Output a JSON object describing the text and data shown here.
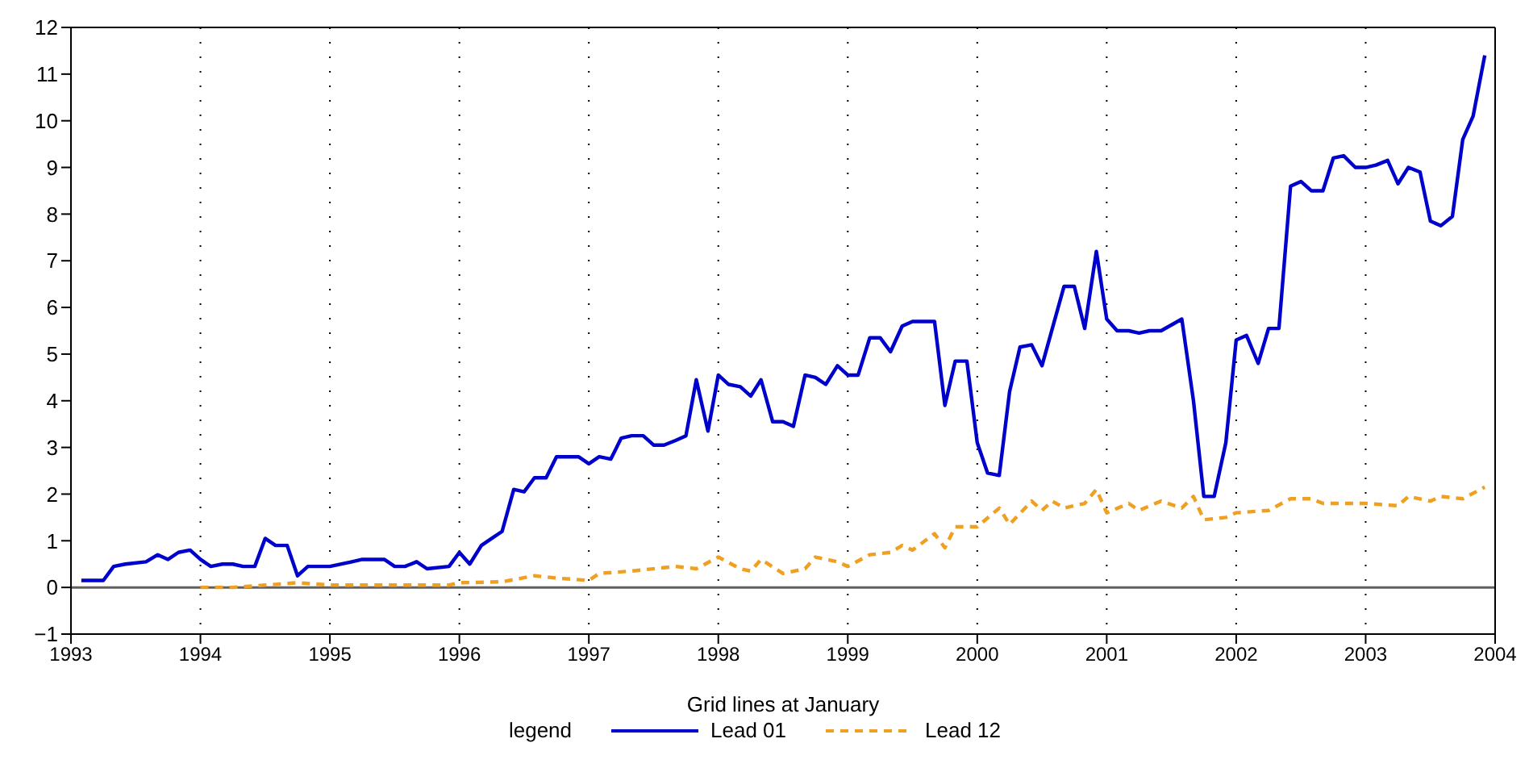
{
  "chart_data": {
    "type": "line",
    "xlabel": "Grid lines at January",
    "legend_title": "legend",
    "legend": "bottom",
    "grid": "x",
    "marker": "none",
    "xlim": [
      1993,
      2004
    ],
    "xticks": [
      1993,
      1994,
      1995,
      1996,
      1997,
      1998,
      1999,
      2000,
      2001,
      2002,
      2003,
      2004
    ],
    "ylim": [
      -1,
      12
    ],
    "yticks": [
      -1,
      0,
      1,
      2,
      3,
      4,
      5,
      6,
      7,
      8,
      9,
      10,
      11,
      12
    ],
    "ref_lines": [
      {
        "axis": "y",
        "value": 0,
        "color": "#606060"
      }
    ],
    "series": [
      {
        "name": "Lead 01",
        "color": "#0000cc",
        "line_style": "solid",
        "x": [
          1993.08,
          1993.25,
          1993.33,
          1993.42,
          1993.58,
          1993.67,
          1993.75,
          1993.83,
          1993.92,
          1994.0,
          1994.08,
          1994.17,
          1994.25,
          1994.33,
          1994.42,
          1994.5,
          1994.58,
          1994.67,
          1994.75,
          1994.83,
          1995.0,
          1995.17,
          1995.25,
          1995.42,
          1995.5,
          1995.58,
          1995.67,
          1995.75,
          1995.92,
          1996.0,
          1996.08,
          1996.17,
          1996.25,
          1996.33,
          1996.42,
          1996.5,
          1996.58,
          1996.67,
          1996.75,
          1996.92,
          1997.0,
          1997.08,
          1997.17,
          1997.25,
          1997.33,
          1997.42,
          1997.5,
          1997.58,
          1997.67,
          1997.75,
          1997.83,
          1997.92,
          1998.0,
          1998.08,
          1998.17,
          1998.25,
          1998.33,
          1998.42,
          1998.5,
          1998.58,
          1998.67,
          1998.75,
          1998.83,
          1998.92,
          1999.0,
          1999.08,
          1999.17,
          1999.25,
          1999.33,
          1999.42,
          1999.5,
          1999.67,
          1999.75,
          1999.83,
          1999.92,
          2000.0,
          2000.08,
          2000.17,
          2000.25,
          2000.33,
          2000.42,
          2000.5,
          2000.58,
          2000.67,
          2000.75,
          2000.83,
          2000.92,
          2001.0,
          2001.08,
          2001.17,
          2001.25,
          2001.33,
          2001.42,
          2001.58,
          2001.67,
          2001.75,
          2001.83,
          2001.92,
          2002.0,
          2002.08,
          2002.17,
          2002.25,
          2002.33,
          2002.42,
          2002.5,
          2002.58,
          2002.67,
          2002.75,
          2002.83,
          2002.92,
          2003.0,
          2003.08,
          2003.17,
          2003.25,
          2003.33,
          2003.42,
          2003.5,
          2003.58,
          2003.67,
          2003.75,
          2003.83,
          2003.92
        ],
        "values": [
          0.15,
          0.15,
          0.45,
          0.5,
          0.55,
          0.7,
          0.6,
          0.75,
          0.8,
          0.6,
          0.45,
          0.5,
          0.5,
          0.45,
          0.45,
          1.05,
          0.9,
          0.9,
          0.25,
          0.45,
          0.45,
          0.55,
          0.6,
          0.6,
          0.45,
          0.45,
          0.55,
          0.4,
          0.45,
          0.75,
          0.5,
          0.9,
          1.05,
          1.2,
          2.1,
          2.05,
          2.35,
          2.35,
          2.8,
          2.8,
          2.65,
          2.8,
          2.75,
          3.2,
          3.25,
          3.25,
          3.05,
          3.05,
          3.15,
          3.25,
          4.45,
          3.35,
          4.55,
          4.35,
          4.3,
          4.1,
          4.45,
          3.55,
          3.55,
          3.45,
          4.55,
          4.5,
          4.35,
          4.75,
          4.55,
          4.55,
          5.35,
          5.35,
          5.05,
          5.6,
          5.7,
          5.7,
          3.9,
          4.85,
          4.85,
          3.1,
          2.45,
          2.4,
          4.2,
          5.15,
          5.2,
          4.75,
          5.55,
          6.45,
          6.45,
          5.55,
          7.2,
          5.75,
          5.5,
          5.5,
          5.45,
          5.5,
          5.5,
          5.75,
          4.0,
          1.95,
          1.95,
          3.1,
          5.3,
          5.4,
          4.8,
          5.55,
          5.55,
          8.6,
          8.7,
          8.5,
          8.5,
          9.2,
          9.25,
          9.0,
          9.0,
          9.05,
          9.15,
          8.65,
          9.0,
          8.9,
          7.85,
          7.75,
          7.95,
          9.6,
          10.1,
          11.4
        ]
      },
      {
        "name": "Lead 12",
        "color": "#f0a020",
        "line_style": "dashed",
        "x": [
          1994.0,
          1994.25,
          1994.5,
          1994.75,
          1995.0,
          1995.5,
          1995.92,
          1996.0,
          1996.33,
          1996.58,
          1996.75,
          1997.0,
          1997.08,
          1997.33,
          1997.67,
          1997.83,
          1998.0,
          1998.17,
          1998.25,
          1998.33,
          1998.5,
          1998.67,
          1998.75,
          1998.92,
          1999.0,
          1999.17,
          1999.33,
          1999.42,
          1999.5,
          1999.67,
          1999.75,
          1999.83,
          2000.0,
          2000.17,
          2000.25,
          2000.42,
          2000.5,
          2000.58,
          2000.67,
          2000.83,
          2000.92,
          2001.0,
          2001.17,
          2001.25,
          2001.42,
          2001.58,
          2001.67,
          2001.75,
          2001.92,
          2002.0,
          2002.25,
          2002.42,
          2002.58,
          2002.67,
          2003.0,
          2003.25,
          2003.33,
          2003.5,
          2003.58,
          2003.75,
          2003.92
        ],
        "values": [
          0,
          0,
          0.05,
          0.1,
          0.05,
          0.05,
          0.05,
          0.1,
          0.12,
          0.25,
          0.2,
          0.15,
          0.3,
          0.35,
          0.45,
          0.4,
          0.65,
          0.4,
          0.35,
          0.6,
          0.3,
          0.4,
          0.65,
          0.55,
          0.45,
          0.7,
          0.75,
          0.9,
          0.8,
          1.15,
          0.85,
          1.3,
          1.3,
          1.7,
          1.35,
          1.85,
          1.65,
          1.85,
          1.7,
          1.8,
          2.1,
          1.6,
          1.8,
          1.65,
          1.85,
          1.7,
          1.95,
          1.45,
          1.5,
          1.6,
          1.65,
          1.9,
          1.9,
          1.8,
          1.8,
          1.75,
          1.95,
          1.85,
          1.95,
          1.9,
          2.15
        ]
      }
    ]
  }
}
